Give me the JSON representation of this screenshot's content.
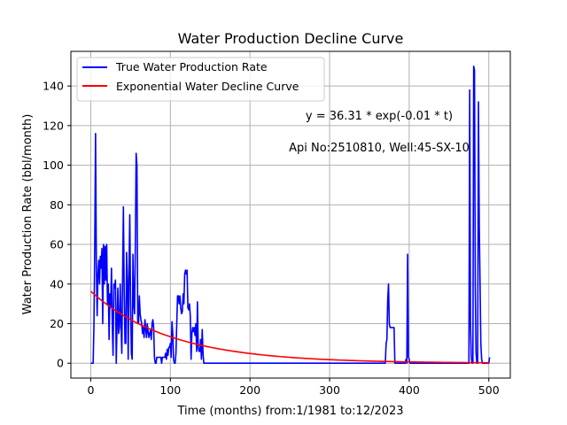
{
  "chart_data": {
    "type": "line",
    "title": "Water Production Decline Curve",
    "xlabel": "Time (months) from:1/1981 to:12/2023",
    "ylabel": "Water Production Rate (bbl/month)",
    "xlim": [
      -25,
      527
    ],
    "ylim": [
      -7.5,
      157.5
    ],
    "x_ticks": [
      0,
      100,
      200,
      300,
      400,
      500
    ],
    "y_ticks": [
      0,
      20,
      40,
      60,
      80,
      100,
      120,
      140
    ],
    "grid": true,
    "legend_position": "top-left",
    "annotations": [
      "y = 36.31 * exp(-0.01 * t)",
      "Api No:2510810, Well:45-SX-10"
    ],
    "series": [
      {
        "name": "True Water Production Rate",
        "color": "#0000ff",
        "points": [
          [
            0,
            0
          ],
          [
            3,
            0
          ],
          [
            4,
            20
          ],
          [
            5,
            60
          ],
          [
            6,
            116
          ],
          [
            7,
            50
          ],
          [
            8,
            24
          ],
          [
            9,
            45
          ],
          [
            10,
            52
          ],
          [
            11,
            40
          ],
          [
            12,
            54
          ],
          [
            13,
            48
          ],
          [
            14,
            58
          ],
          [
            15,
            20
          ],
          [
            16,
            60
          ],
          [
            17,
            40
          ],
          [
            18,
            59
          ],
          [
            19,
            42
          ],
          [
            20,
            60
          ],
          [
            21,
            30
          ],
          [
            22,
            40
          ],
          [
            23,
            12
          ],
          [
            24,
            35
          ],
          [
            25,
            28
          ],
          [
            26,
            48
          ],
          [
            27,
            20
          ],
          [
            28,
            4
          ],
          [
            29,
            40
          ],
          [
            30,
            38
          ],
          [
            31,
            42
          ],
          [
            32,
            0
          ],
          [
            33,
            20
          ],
          [
            34,
            38
          ],
          [
            35,
            15
          ],
          [
            36,
            18
          ],
          [
            37,
            40
          ],
          [
            38,
            20
          ],
          [
            39,
            5
          ],
          [
            40,
            45
          ],
          [
            41,
            79
          ],
          [
            42,
            35
          ],
          [
            43,
            10
          ],
          [
            44,
            10
          ],
          [
            45,
            56
          ],
          [
            46,
            42
          ],
          [
            47,
            2
          ],
          [
            48,
            45
          ],
          [
            49,
            75
          ],
          [
            50,
            30
          ],
          [
            51,
            5
          ],
          [
            52,
            2
          ],
          [
            53,
            55
          ],
          [
            54,
            30
          ],
          [
            55,
            25
          ],
          [
            56,
            60
          ],
          [
            57,
            106
          ],
          [
            58,
            100
          ],
          [
            59,
            20
          ],
          [
            60,
            20
          ],
          [
            61,
            34
          ],
          [
            62,
            25
          ],
          [
            63,
            22
          ],
          [
            64,
            20
          ],
          [
            65,
            15
          ],
          [
            66,
            18
          ],
          [
            67,
            13
          ],
          [
            68,
            22
          ],
          [
            69,
            18
          ],
          [
            70,
            13
          ],
          [
            71,
            20
          ],
          [
            72,
            16
          ],
          [
            73,
            13
          ],
          [
            74,
            15
          ],
          [
            75,
            17
          ],
          [
            76,
            12
          ],
          [
            77,
            20
          ],
          [
            78,
            22
          ],
          [
            79,
            18
          ],
          [
            80,
            3
          ],
          [
            81,
            0
          ],
          [
            82,
            0
          ],
          [
            83,
            3
          ],
          [
            84,
            3
          ],
          [
            88,
            3
          ],
          [
            89,
            0
          ],
          [
            90,
            3
          ],
          [
            93,
            3
          ],
          [
            94,
            5
          ],
          [
            95,
            2
          ],
          [
            96,
            7
          ],
          [
            97,
            4
          ],
          [
            98,
            8
          ],
          [
            99,
            8
          ],
          [
            100,
            10
          ],
          [
            101,
            3
          ],
          [
            102,
            21
          ],
          [
            103,
            15
          ],
          [
            104,
            2
          ],
          [
            105,
            0
          ],
          [
            106,
            0
          ],
          [
            107,
            5
          ],
          [
            108,
            20
          ],
          [
            109,
            34
          ],
          [
            110,
            34
          ],
          [
            111,
            30
          ],
          [
            112,
            34
          ],
          [
            113,
            28
          ],
          [
            114,
            25
          ],
          [
            115,
            26
          ],
          [
            116,
            35
          ],
          [
            117,
            30
          ],
          [
            118,
            45
          ],
          [
            119,
            47
          ],
          [
            120,
            45
          ],
          [
            121,
            47
          ],
          [
            122,
            28
          ],
          [
            123,
            27
          ],
          [
            124,
            30
          ],
          [
            125,
            24
          ],
          [
            126,
            2
          ],
          [
            127,
            15
          ],
          [
            128,
            18
          ],
          [
            129,
            16
          ],
          [
            130,
            18
          ],
          [
            131,
            14
          ],
          [
            132,
            20
          ],
          [
            133,
            6
          ],
          [
            134,
            31
          ],
          [
            135,
            8
          ],
          [
            136,
            6
          ],
          [
            137,
            6
          ],
          [
            138,
            12
          ],
          [
            139,
            2
          ],
          [
            140,
            17
          ],
          [
            141,
            5
          ],
          [
            142,
            0
          ],
          [
            143,
            0
          ],
          [
            200,
            0
          ],
          [
            300,
            0
          ],
          [
            370,
            0
          ],
          [
            371,
            10
          ],
          [
            372,
            12
          ],
          [
            373,
            32
          ],
          [
            374,
            40
          ],
          [
            375,
            20
          ],
          [
            376,
            18
          ],
          [
            377,
            18
          ],
          [
            378,
            18
          ],
          [
            379,
            18
          ],
          [
            380,
            18
          ],
          [
            381,
            18
          ],
          [
            382,
            0
          ],
          [
            395,
            0
          ],
          [
            396,
            2
          ],
          [
            397,
            0
          ],
          [
            398,
            55
          ],
          [
            399,
            3
          ],
          [
            400,
            2
          ],
          [
            401,
            0
          ],
          [
            475,
            0
          ],
          [
            476,
            138
          ],
          [
            477,
            20
          ],
          [
            478,
            3
          ],
          [
            479,
            0
          ],
          [
            480,
            0
          ],
          [
            481,
            150
          ],
          [
            482,
            148
          ],
          [
            483,
            40
          ],
          [
            484,
            5
          ],
          [
            485,
            0
          ],
          [
            486,
            0
          ],
          [
            487,
            132
          ],
          [
            488,
            70
          ],
          [
            489,
            40
          ],
          [
            490,
            10
          ],
          [
            491,
            2
          ],
          [
            492,
            0
          ],
          [
            498,
            0
          ],
          [
            499,
            0
          ],
          [
            500,
            0
          ],
          [
            501,
            3
          ]
        ]
      },
      {
        "name": "Exponential Water Decline Curve",
        "color": "#ff0000",
        "equation": {
          "a": 36.31,
          "b": -0.01
        },
        "x_range": [
          0,
          501
        ]
      }
    ]
  }
}
